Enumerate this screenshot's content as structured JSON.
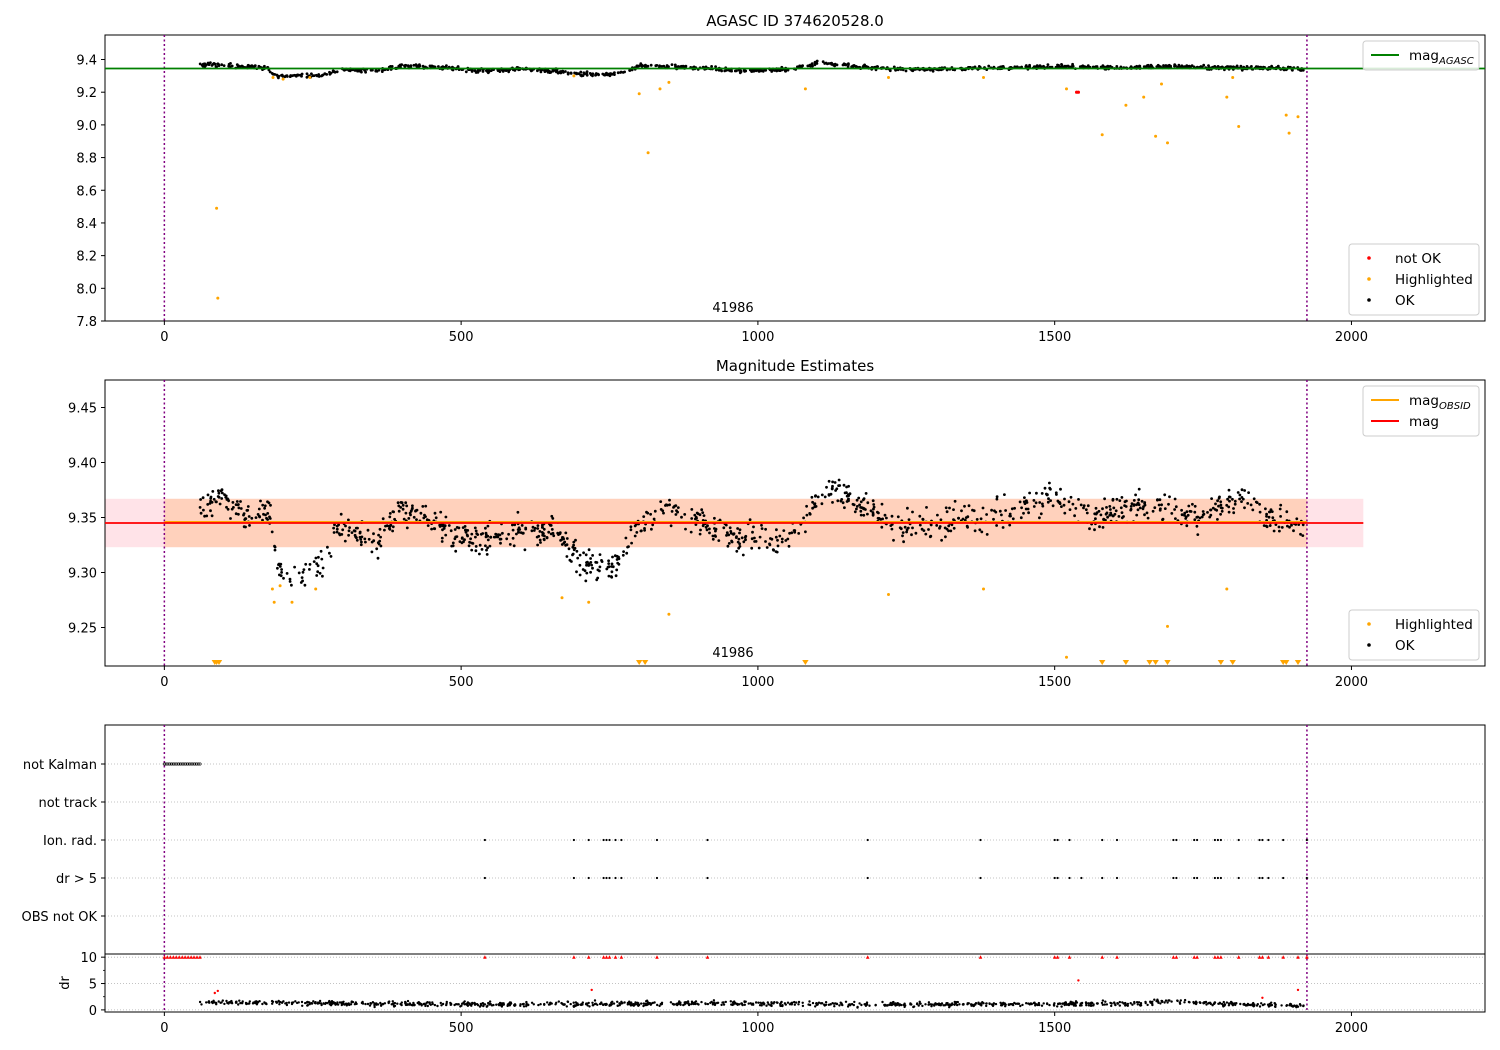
{
  "colors": {
    "ok": "#000000",
    "highlighted": "#ffa500",
    "not_ok": "#ff0000",
    "mag_agasc_line": "#008000",
    "mag_line": "#ff0000",
    "mag_obsid_line": "#ffa500",
    "band_outer": "#ffc0cb",
    "band_inner": "#ffbb88",
    "obs_boundary": "#800080",
    "grid": "#b0b0b0"
  },
  "chart_data": [
    {
      "id": "top",
      "type": "scatter",
      "title": "AGASC ID 374620528.0",
      "annotation": "41986",
      "xlim": [
        -100,
        2225
      ],
      "ylim": [
        7.8,
        9.55
      ],
      "xticks": [
        0,
        500,
        1000,
        1500,
        2000
      ],
      "yticks": [
        7.8,
        8.0,
        8.2,
        8.4,
        8.6,
        8.8,
        9.0,
        9.2,
        9.4
      ],
      "ytick_decimals": 1,
      "obs_boundaries": [
        0,
        1925
      ],
      "hlines": [
        {
          "name": "mag",
          "sub": "AGASC",
          "y": 9.345,
          "x0": -100,
          "x1": 2225,
          "color": "#008000"
        }
      ],
      "legends": [
        {
          "position": "upper-right",
          "entries": [
            {
              "kind": "line",
              "label": "mag",
              "sub": "AGASC",
              "color": "#008000"
            }
          ]
        },
        {
          "position": "lower-right",
          "entries": [
            {
              "kind": "dot",
              "label": "not OK",
              "color": "#ff0000"
            },
            {
              "kind": "dot",
              "label": "Highlighted",
              "color": "#ffa500"
            },
            {
              "kind": "dot",
              "label": "OK",
              "color": "#000000"
            }
          ]
        }
      ],
      "ok_trend": [
        [
          60,
          9.37
        ],
        [
          120,
          9.36
        ],
        [
          175,
          9.35
        ],
        [
          185,
          9.3
        ],
        [
          260,
          9.3
        ],
        [
          300,
          9.34
        ],
        [
          330,
          9.33
        ],
        [
          360,
          9.33
        ],
        [
          400,
          9.36
        ],
        [
          480,
          9.35
        ],
        [
          520,
          9.33
        ],
        [
          600,
          9.34
        ],
        [
          660,
          9.33
        ],
        [
          700,
          9.31
        ],
        [
          760,
          9.31
        ],
        [
          800,
          9.36
        ],
        [
          900,
          9.35
        ],
        [
          980,
          9.33
        ],
        [
          1060,
          9.34
        ],
        [
          1100,
          9.38
        ],
        [
          1160,
          9.36
        ],
        [
          1240,
          9.34
        ],
        [
          1300,
          9.34
        ],
        [
          1400,
          9.35
        ],
        [
          1500,
          9.36
        ],
        [
          1600,
          9.35
        ],
        [
          1700,
          9.36
        ],
        [
          1780,
          9.35
        ],
        [
          1840,
          9.35
        ],
        [
          1920,
          9.34
        ]
      ],
      "ok_range": [
        60,
        1920
      ],
      "ok_noise": 0.012,
      "ok_count": 1100,
      "highlighted_points": [
        [
          88,
          8.49
        ],
        [
          90,
          7.94
        ],
        [
          183,
          9.29
        ],
        [
          200,
          9.28
        ],
        [
          245,
          9.29
        ],
        [
          690,
          9.3
        ],
        [
          800,
          9.19
        ],
        [
          815,
          8.83
        ],
        [
          835,
          9.22
        ],
        [
          850,
          9.26
        ],
        [
          1080,
          9.22
        ],
        [
          1220,
          9.29
        ],
        [
          1380,
          9.29
        ],
        [
          1520,
          9.22
        ],
        [
          1580,
          8.94
        ],
        [
          1620,
          9.12
        ],
        [
          1650,
          9.17
        ],
        [
          1670,
          8.93
        ],
        [
          1680,
          9.25
        ],
        [
          1690,
          8.89
        ],
        [
          1790,
          9.17
        ],
        [
          1800,
          9.29
        ],
        [
          1810,
          8.99
        ],
        [
          1890,
          9.06
        ],
        [
          1895,
          8.95
        ],
        [
          1910,
          9.05
        ]
      ],
      "not_ok_points": [
        [
          1537,
          9.2
        ],
        [
          1540,
          9.2
        ]
      ]
    },
    {
      "id": "middle",
      "type": "scatter",
      "title": "Magnitude Estimates",
      "annotation": "41986",
      "xlim": [
        -100,
        2225
      ],
      "ylim": [
        9.215,
        9.475
      ],
      "xticks": [
        0,
        500,
        1000,
        1500,
        2000
      ],
      "yticks": [
        9.25,
        9.3,
        9.35,
        9.4,
        9.45
      ],
      "ytick_decimals": 2,
      "obs_boundaries": [
        0,
        1925
      ],
      "bands": [
        {
          "y0": 9.323,
          "y1": 9.367,
          "x0": -100,
          "x1": 2020,
          "color": "#ffc0cb",
          "opacity": 0.45
        },
        {
          "y0": 9.323,
          "y1": 9.367,
          "x0": 0,
          "x1": 1925,
          "color": "#ffbb88",
          "opacity": 0.45
        }
      ],
      "hlines": [
        {
          "name": "mag",
          "sub": "OBSID",
          "y": 9.346,
          "x0": 0,
          "x1": 1925,
          "color": "#ffa500"
        },
        {
          "name": "mag",
          "y": 9.345,
          "x0": -100,
          "x1": 2020,
          "color": "#ff0000"
        }
      ],
      "legends": [
        {
          "position": "upper-right",
          "entries": [
            {
              "kind": "line",
              "label": "mag",
              "sub": "OBSID",
              "color": "#ffa500"
            },
            {
              "kind": "line",
              "label": "mag",
              "color": "#ff0000"
            }
          ]
        },
        {
          "position": "lower-right",
          "entries": [
            {
              "kind": "dot",
              "label": "Highlighted",
              "color": "#ffa500"
            },
            {
              "kind": "dot",
              "label": "OK",
              "color": "#000000"
            }
          ]
        }
      ],
      "ok_trend": [
        [
          60,
          9.36
        ],
        [
          90,
          9.37
        ],
        [
          110,
          9.36
        ],
        [
          140,
          9.35
        ],
        [
          180,
          9.355
        ],
        [
          190,
          9.3
        ],
        [
          220,
          9.295
        ],
        [
          250,
          9.305
        ],
        [
          270,
          9.31
        ],
        [
          290,
          9.34
        ],
        [
          330,
          9.335
        ],
        [
          360,
          9.325
        ],
        [
          400,
          9.36
        ],
        [
          450,
          9.345
        ],
        [
          520,
          9.33
        ],
        [
          580,
          9.335
        ],
        [
          660,
          9.34
        ],
        [
          700,
          9.31
        ],
        [
          760,
          9.305
        ],
        [
          790,
          9.34
        ],
        [
          840,
          9.36
        ],
        [
          900,
          9.345
        ],
        [
          960,
          9.33
        ],
        [
          1040,
          9.33
        ],
        [
          1080,
          9.35
        ],
        [
          1120,
          9.38
        ],
        [
          1180,
          9.36
        ],
        [
          1240,
          9.34
        ],
        [
          1300,
          9.345
        ],
        [
          1400,
          9.35
        ],
        [
          1500,
          9.37
        ],
        [
          1560,
          9.35
        ],
        [
          1620,
          9.36
        ],
        [
          1680,
          9.36
        ],
        [
          1740,
          9.35
        ],
        [
          1780,
          9.36
        ],
        [
          1820,
          9.37
        ],
        [
          1860,
          9.35
        ],
        [
          1920,
          9.34
        ]
      ],
      "ok_range": [
        60,
        1920
      ],
      "ok_noise": 0.013,
      "ok_count": 1150,
      "highlighted_points": [
        [
          182,
          9.285
        ],
        [
          185,
          9.273
        ],
        [
          195,
          9.288
        ],
        [
          215,
          9.273
        ],
        [
          255,
          9.285
        ],
        [
          670,
          9.277
        ],
        [
          715,
          9.273
        ],
        [
          850,
          9.262
        ],
        [
          1220,
          9.28
        ],
        [
          1380,
          9.285
        ],
        [
          1520,
          9.223
        ],
        [
          1690,
          9.251
        ],
        [
          1790,
          9.285
        ]
      ],
      "highlighted_clipped_x": [
        85,
        88,
        92,
        800,
        810,
        1080,
        1580,
        1620,
        1660,
        1670,
        1690,
        1780,
        1800,
        1885,
        1890,
        1910
      ]
    },
    {
      "id": "flags",
      "type": "scatter",
      "categories": [
        "not Kalman",
        "not track",
        "Ion. rad.",
        "dr > 5",
        "OBS not OK"
      ],
      "xlim": [
        -100,
        2225
      ],
      "obs_boundaries": [
        0,
        1925
      ],
      "not_kalman_range": [
        0,
        60
      ],
      "ion_rad_x": [
        540,
        690,
        715,
        740,
        745,
        750,
        760,
        770,
        830,
        915,
        1185,
        1375,
        1500,
        1505,
        1525,
        1580,
        1605,
        1700,
        1705,
        1735,
        1740,
        1770,
        1775,
        1780,
        1810,
        1845,
        1850,
        1860,
        1885,
        1925
      ],
      "dr_gt_5_x": [
        540,
        690,
        715,
        740,
        745,
        750,
        760,
        770,
        830,
        915,
        1185,
        1375,
        1500,
        1505,
        1525,
        1545,
        1580,
        1605,
        1700,
        1705,
        1735,
        1740,
        1770,
        1775,
        1780,
        1810,
        1845,
        1850,
        1860,
        1885,
        1925
      ]
    },
    {
      "id": "dr",
      "type": "scatter",
      "ylabel": "dr",
      "xlim": [
        -100,
        2225
      ],
      "ylim": [
        -0.4,
        10.6
      ],
      "xticks": [
        0,
        500,
        1000,
        1500,
        2000
      ],
      "yticks": [
        0,
        5,
        10
      ],
      "obs_boundaries": [
        0,
        1925
      ],
      "clip_value": 10,
      "red_clipped_x": [
        0,
        5,
        10,
        15,
        20,
        25,
        30,
        35,
        40,
        45,
        50,
        55,
        60,
        540,
        690,
        715,
        740,
        745,
        750,
        760,
        770,
        830,
        915,
        1185,
        1375,
        1500,
        1505,
        1525,
        1580,
        1605,
        1700,
        1705,
        1735,
        1740,
        1770,
        1775,
        1780,
        1810,
        1845,
        1850,
        1860,
        1885,
        1910,
        1925
      ],
      "red_points": [
        [
          85,
          3.2
        ],
        [
          90,
          3.6
        ],
        [
          720,
          3.8
        ],
        [
          1540,
          5.6
        ],
        [
          1850,
          2.3
        ],
        [
          1910,
          3.8
        ]
      ],
      "black_trend": [
        [
          60,
          1.5
        ],
        [
          300,
          1.2
        ],
        [
          600,
          1.0
        ],
        [
          900,
          1.3
        ],
        [
          1200,
          1.0
        ],
        [
          1500,
          1.1
        ],
        [
          1650,
          1.2
        ],
        [
          1700,
          1.8
        ],
        [
          1760,
          1.2
        ],
        [
          1920,
          0.8
        ]
      ],
      "black_range": [
        60,
        1920
      ],
      "black_noise": 0.45,
      "black_count": 1050
    }
  ]
}
